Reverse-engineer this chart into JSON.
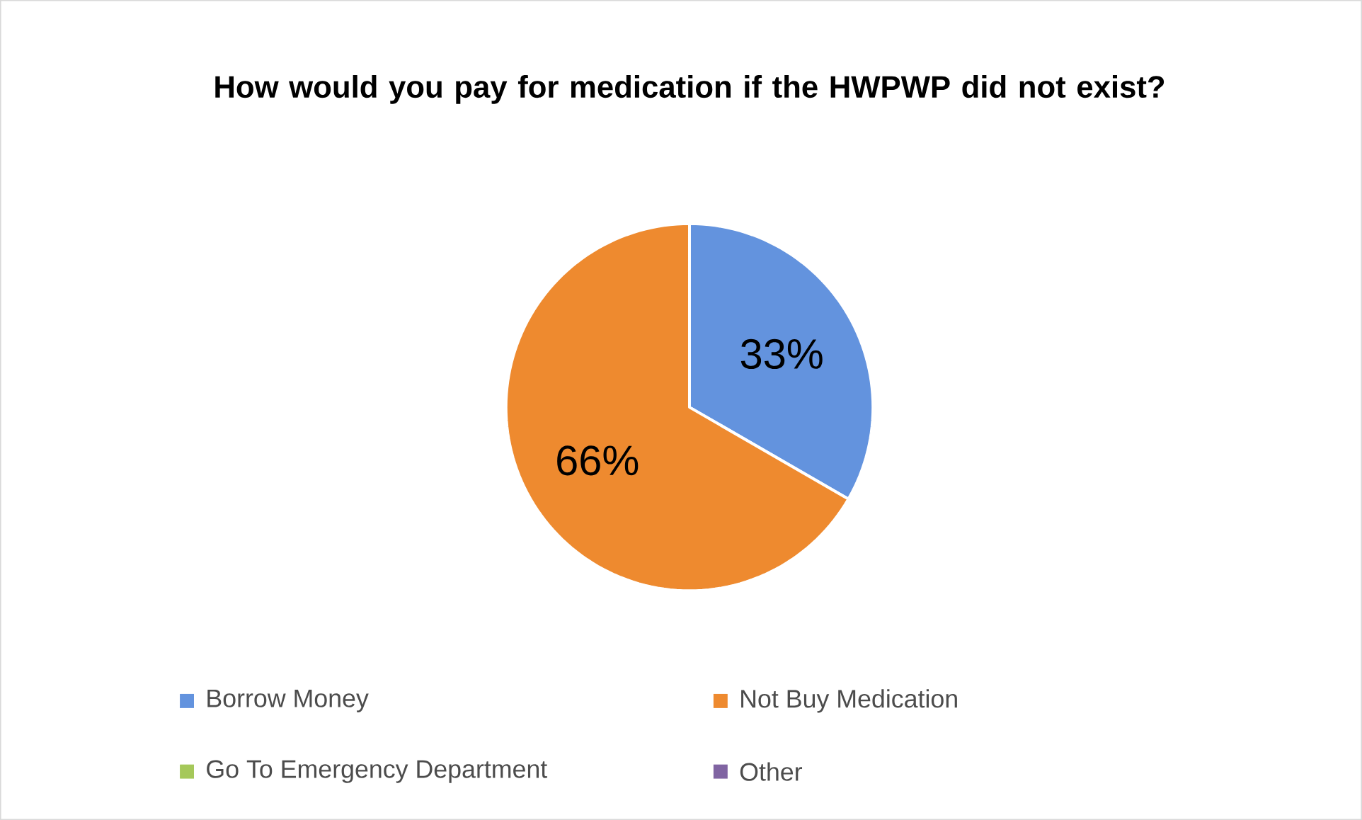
{
  "chart_data": {
    "type": "pie",
    "title": "How would you pay for medication if the HWPWP did not exist?",
    "categories": [
      "Borrow Money",
      "Not Buy Medication",
      "Go To Emergency Department",
      "Other"
    ],
    "values": [
      33,
      66,
      0,
      0
    ],
    "colors": [
      "#6393de",
      "#ee8a2f",
      "#a5c85a",
      "#8064a2"
    ],
    "value_labels": [
      "33%",
      "66%",
      null,
      null
    ],
    "legend": "bottom"
  }
}
